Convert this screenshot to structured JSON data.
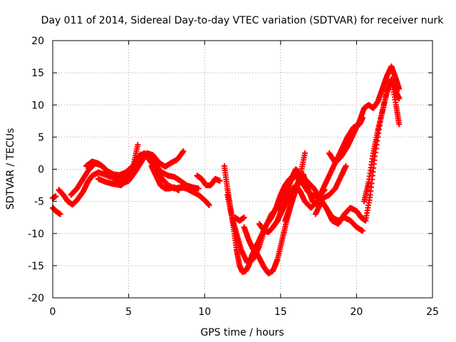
{
  "chart_data": {
    "type": "scatter",
    "title": "Day 011 of 2014, Sidereal Day-to-day VTEC variation (SDTVAR) for receiver nurk",
    "xlabel": "GPS time / hours",
    "ylabel": "SDTVAR / TECUs",
    "xlim": [
      0,
      25
    ],
    "ylim": [
      -20,
      20
    ],
    "xticks": [
      0,
      5,
      10,
      15,
      20,
      25
    ],
    "yticks": [
      -20,
      -15,
      -10,
      -5,
      0,
      5,
      10,
      15,
      20
    ],
    "grid": true,
    "marker": "+",
    "color": "#ff0000",
    "series": [
      {
        "x": [
          0.0,
          0.2,
          0.5
        ],
        "y": [
          -6.0,
          -6.5,
          -7.0
        ]
      },
      {
        "x": [
          0.0,
          0.2
        ],
        "y": [
          -4.5,
          -4.2
        ]
      },
      {
        "x": [
          0.4,
          0.7,
          1.0,
          1.3,
          1.6,
          2.0,
          2.3,
          2.6,
          3.0,
          3.4,
          3.8,
          4.3,
          4.8,
          5.2,
          5.5,
          5.8,
          6.2,
          6.5,
          6.8,
          7.2,
          7.6,
          8.0,
          8.4,
          8.8,
          9.2,
          9.6,
          10.0,
          10.3
        ],
        "y": [
          -3.2,
          -4.0,
          -5.0,
          -5.5,
          -4.8,
          -3.5,
          -2.0,
          -1.0,
          -0.5,
          -0.8,
          -1.2,
          -1.0,
          -1.5,
          -0.5,
          1.5,
          2.3,
          2.0,
          1.0,
          0.0,
          -1.5,
          -2.5,
          -3.0,
          -2.8,
          -3.0,
          -3.5,
          -4.0,
          -4.8,
          -5.6
        ]
      },
      {
        "x": [
          1.2,
          1.6,
          2.0,
          2.4,
          2.8,
          3.2,
          3.6,
          4.0,
          4.4,
          4.8,
          5.2,
          5.6,
          6.0,
          6.4,
          6.8,
          7.2,
          7.6,
          8.0,
          8.4,
          8.8,
          9.2,
          9.6
        ],
        "y": [
          -4.0,
          -3.0,
          -1.5,
          0.0,
          0.9,
          0.6,
          -0.3,
          -0.8,
          -0.9,
          -0.5,
          0.3,
          1.5,
          2.5,
          2.0,
          0.5,
          -0.5,
          -1.0,
          -1.2,
          -1.8,
          -2.5,
          -2.8,
          -3.0
        ]
      },
      {
        "x": [
          2.2,
          2.6,
          3.0,
          3.4,
          3.8,
          4.2,
          4.6,
          5.0,
          5.4,
          5.8,
          6.2,
          6.6,
          7.0,
          7.4,
          7.8,
          8.2,
          8.6
        ],
        "y": [
          0.5,
          1.2,
          0.9,
          0.2,
          -1.0,
          -1.8,
          -2.2,
          -1.8,
          -0.5,
          1.0,
          2.5,
          2.2,
          1.0,
          0.4,
          1.0,
          1.5,
          2.8
        ]
      },
      {
        "x": [
          3.0,
          3.5,
          4.0,
          4.5,
          5.0,
          5.3,
          5.6
        ],
        "y": [
          -1.5,
          -2.0,
          -2.3,
          -2.5,
          -1.5,
          0.5,
          3.8
        ]
      },
      {
        "x": [
          6.5,
          6.8,
          7.1,
          7.4,
          7.7,
          8.0,
          8.3
        ],
        "y": [
          0.5,
          -1.0,
          -2.5,
          -3.0,
          -3.0,
          -2.8,
          -3.3
        ]
      },
      {
        "x": [
          9.5,
          9.8,
          10.1,
          10.4,
          10.7,
          11.0
        ],
        "y": [
          -1.0,
          -1.5,
          -2.5,
          -2.5,
          -1.5,
          -1.8
        ]
      },
      {
        "x": [
          11.3,
          11.5,
          11.7,
          11.9,
          12.1,
          12.3,
          12.5,
          12.7,
          12.9,
          13.1,
          13.3,
          13.6,
          13.9,
          14.2,
          14.5,
          14.8,
          15.1,
          15.4,
          15.7,
          16.0,
          16.3,
          16.6
        ],
        "y": [
          0.5,
          -3.0,
          -6.0,
          -9.0,
          -12.5,
          -15.0,
          -16.0,
          -15.8,
          -15.0,
          -13.5,
          -12.5,
          -13.8,
          -15.2,
          -16.2,
          -15.8,
          -14.0,
          -11.0,
          -8.0,
          -5.5,
          -3.0,
          -1.0,
          2.5
        ]
      },
      {
        "x": [
          11.5,
          11.8,
          12.1,
          12.4,
          12.8,
          13.2,
          13.6,
          14.0,
          14.4,
          14.8,
          15.2,
          15.6,
          16.0,
          16.4,
          16.8,
          17.2,
          17.6,
          17.9
        ],
        "y": [
          -4.0,
          -7.5,
          -10.0,
          -12.5,
          -14.5,
          -14.0,
          -12.0,
          -9.0,
          -7.0,
          -6.0,
          -4.0,
          -2.0,
          -1.0,
          -2.0,
          -3.5,
          -4.2,
          -4.0,
          -3.2
        ]
      },
      {
        "x": [
          12.0,
          12.3,
          12.6
        ],
        "y": [
          -7.5,
          -8.0,
          -7.5
        ]
      },
      {
        "x": [
          12.6,
          12.9,
          13.2,
          13.5,
          13.8,
          14.1,
          14.4,
          14.7,
          15.0,
          15.3,
          15.6
        ],
        "y": [
          -9.0,
          -11.0,
          -12.5,
          -11.5,
          -10.0,
          -8.5,
          -7.5,
          -6.0,
          -4.0,
          -2.5,
          -1.5
        ]
      },
      {
        "x": [
          13.6,
          13.9,
          14.2,
          14.5,
          14.8,
          15.1,
          15.4,
          15.7,
          16.0,
          16.3,
          16.6,
          17.0,
          17.4,
          17.8,
          18.2,
          18.6,
          19.0,
          19.4,
          19.8,
          20.2,
          20.4
        ],
        "y": [
          -8.5,
          -9.5,
          -9.8,
          -9.0,
          -8.0,
          -6.5,
          -5.0,
          -3.5,
          -2.5,
          -3.5,
          -5.0,
          -6.0,
          -5.0,
          -3.0,
          -1.0,
          1.0,
          3.0,
          5.0,
          6.5,
          7.0,
          8.0
        ]
      },
      {
        "x": [
          14.8,
          15.1,
          15.4,
          15.7,
          16.0,
          16.4,
          16.8,
          17.2,
          17.6,
          18.0,
          18.4,
          18.8,
          19.2,
          19.6,
          20.0,
          20.4
        ],
        "y": [
          -8.0,
          -6.0,
          -4.0,
          -1.5,
          0.0,
          -1.0,
          -2.0,
          -3.0,
          -4.5,
          -6.0,
          -7.5,
          -8.0,
          -7.5,
          -8.0,
          -9.0,
          -9.6
        ]
      },
      {
        "x": [
          15.3,
          15.6,
          15.9,
          16.2,
          16.5,
          16.8,
          17.1,
          17.4,
          17.8,
          18.2,
          18.6,
          19.0,
          19.3
        ],
        "y": [
          -8.0,
          -6.0,
          -4.0,
          -2.0,
          -0.8,
          -3.0,
          -5.0,
          -5.5,
          -4.5,
          -4.0,
          -3.0,
          -1.0,
          0.5
        ]
      },
      {
        "x": [
          17.3,
          17.7,
          18.0,
          18.4,
          18.8,
          19.2,
          19.6,
          20.0,
          20.3,
          20.6,
          20.9,
          21.2,
          21.6,
          22.0,
          22.3,
          22.6,
          22.8
        ],
        "y": [
          -7.0,
          -5.0,
          -6.0,
          -8.0,
          -8.5,
          -7.0,
          -6.0,
          -6.5,
          -7.5,
          -8.0,
          -4.0,
          2.0,
          8.0,
          12.0,
          14.0,
          12.0,
          11.0
        ]
      },
      {
        "x": [
          18.2,
          18.6,
          19.0,
          19.4,
          19.8,
          20.2,
          20.5,
          20.8,
          21.1,
          21.4,
          21.7,
          22.0,
          22.3,
          22.6,
          22.8
        ],
        "y": [
          2.5,
          1.0,
          2.0,
          3.5,
          5.5,
          7.5,
          9.5,
          10.0,
          9.5,
          10.5,
          12.5,
          14.5,
          16.0,
          14.0,
          12.5
        ]
      },
      {
        "x": [
          20.5,
          20.8,
          21.1,
          21.4,
          21.7,
          22.0,
          22.3,
          22.6,
          22.8
        ],
        "y": [
          -5.0,
          -2.0,
          2.5,
          6.0,
          9.0,
          12.0,
          14.0,
          10.0,
          7.0
        ]
      }
    ]
  }
}
